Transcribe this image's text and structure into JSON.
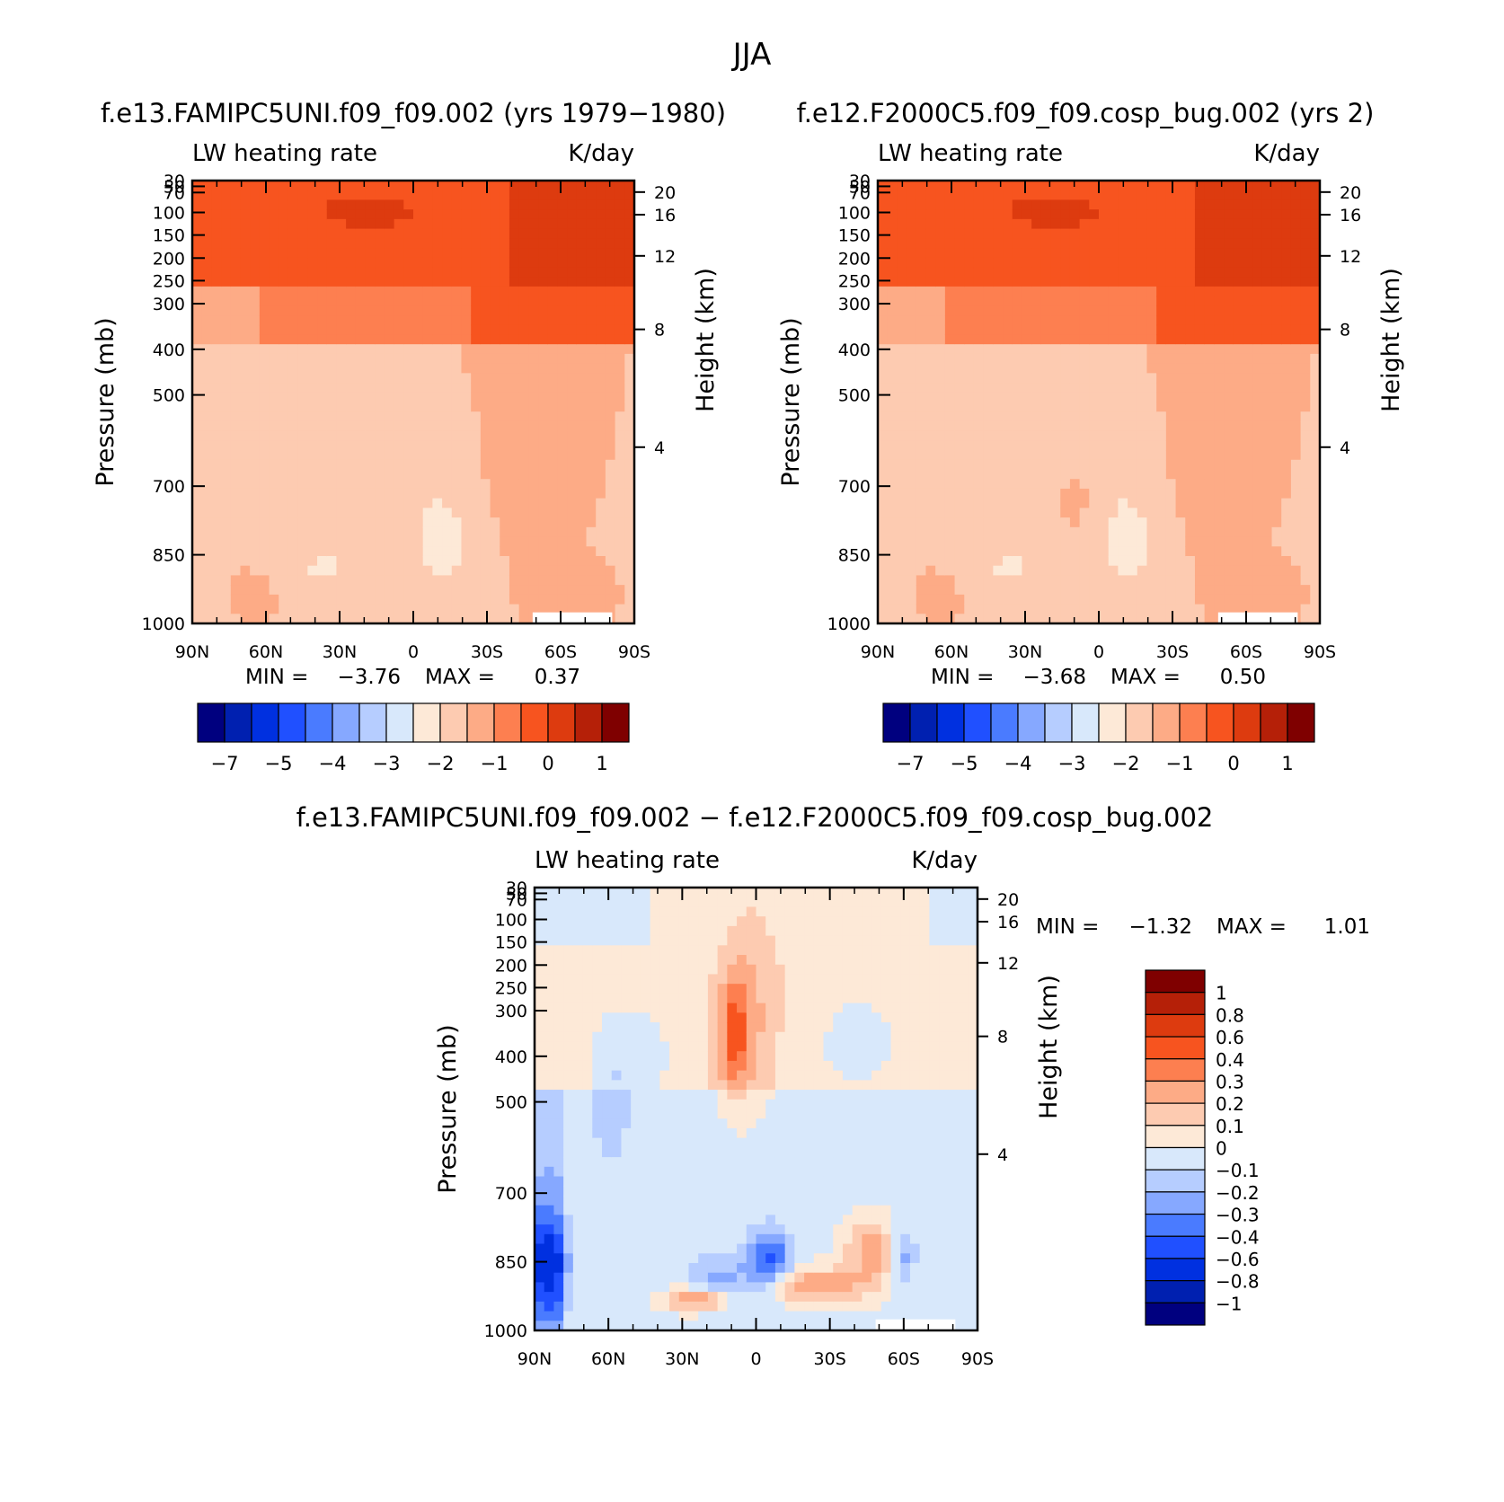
{
  "page_title": "JJA",
  "chart_data": [
    {
      "type": "heatmap",
      "panel": "top-left",
      "title": "f.e13.FAMIPC5UNI.f09_f09.002 (yrs 1979−1980)",
      "left_string": "LW heating rate",
      "right_string": "K/day",
      "xlabel": "",
      "ylabel": "Pressure (mb)",
      "ylabel_right": "Height (km)",
      "x_ticks": [
        "90N",
        "60N",
        "30N",
        "0",
        "30S",
        "60S",
        "90S"
      ],
      "y_ticks": [
        "30",
        "50",
        "70",
        "100",
        "150",
        "200",
        "250",
        "300",
        "400",
        "500",
        "700",
        "850",
        "1000"
      ],
      "y_right_ticks": [
        "20",
        "16",
        "12",
        "8",
        "4"
      ],
      "ylim": [
        1000,
        30
      ],
      "min_label": "MIN =",
      "min_value": "−3.76",
      "max_label": "MAX =",
      "max_value": "0.37",
      "colorbar_labels": [
        "−7",
        "−5",
        "−4",
        "−3",
        "−2",
        "−1",
        "0",
        "1"
      ]
    },
    {
      "type": "heatmap",
      "panel": "top-right",
      "title": "f.e12.F2000C5.f09_f09.cosp_bug.002 (yrs 2)",
      "left_string": "LW heating rate",
      "right_string": "K/day",
      "xlabel": "",
      "ylabel": "Pressure (mb)",
      "ylabel_right": "Height (km)",
      "x_ticks": [
        "90N",
        "60N",
        "30N",
        "0",
        "30S",
        "60S",
        "90S"
      ],
      "y_ticks": [
        "30",
        "50",
        "70",
        "100",
        "150",
        "200",
        "250",
        "300",
        "400",
        "500",
        "700",
        "850",
        "1000"
      ],
      "y_right_ticks": [
        "20",
        "16",
        "12",
        "8",
        "4"
      ],
      "ylim": [
        1000,
        30
      ],
      "min_label": "MIN =",
      "min_value": "−3.68",
      "max_label": "MAX =",
      "max_value": "0.50",
      "colorbar_labels": [
        "−7",
        "−5",
        "−4",
        "−3",
        "−2",
        "−1",
        "0",
        "1"
      ]
    },
    {
      "type": "heatmap",
      "panel": "bottom",
      "title": "f.e13.FAMIPC5UNI.f09_f09.002 − f.e12.F2000C5.f09_f09.cosp_bug.002",
      "left_string": "LW heating rate",
      "right_string": "K/day",
      "xlabel": "",
      "ylabel": "Pressure (mb)",
      "ylabel_right": "Height (km)",
      "x_ticks": [
        "90N",
        "60N",
        "30N",
        "0",
        "30S",
        "60S",
        "90S"
      ],
      "y_ticks": [
        "30",
        "50",
        "70",
        "100",
        "150",
        "200",
        "250",
        "300",
        "400",
        "500",
        "700",
        "850",
        "1000"
      ],
      "y_right_ticks": [
        "20",
        "16",
        "12",
        "8",
        "4"
      ],
      "ylim": [
        1000,
        30
      ],
      "min_label": "MIN =",
      "min_value": "−1.32",
      "max_label": "MAX =",
      "max_value": "1.01",
      "colorbar_labels": [
        "1",
        "0.8",
        "0.6",
        "0.4",
        "0.3",
        "0.2",
        "0.1",
        "0",
        "−0.1",
        "−0.2",
        "−0.3",
        "−0.4",
        "−0.6",
        "−0.8",
        "−1"
      ]
    }
  ],
  "colors": {
    "palette_16": [
      "#00007f",
      "#0020b0",
      "#0030e0",
      "#2050ff",
      "#4a7bff",
      "#86a8ff",
      "#b6cdff",
      "#d8e8fb",
      "#fde9d7",
      "#fdcbb1",
      "#fdab86",
      "#fd7f50",
      "#f7541f",
      "#dd3b0f",
      "#b52008",
      "#7f0000"
    ]
  }
}
